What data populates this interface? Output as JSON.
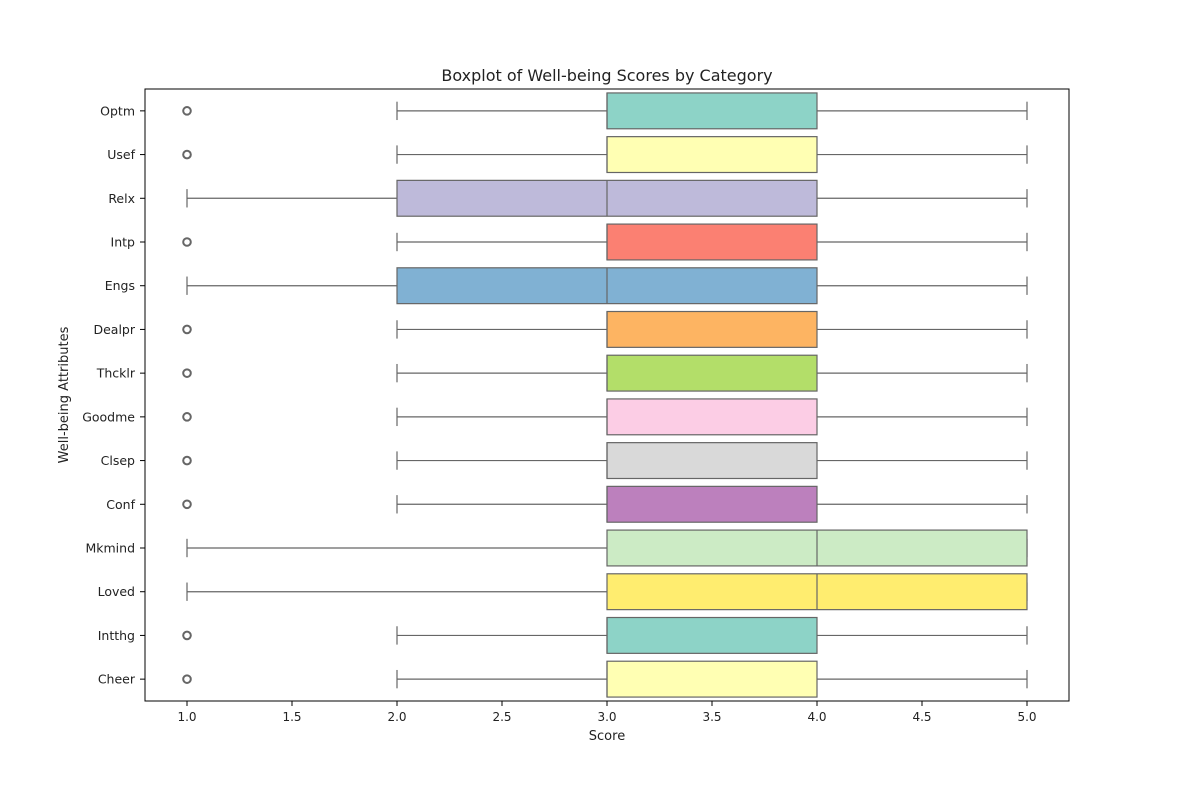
{
  "chart_data": {
    "type": "boxplot",
    "orientation": "horizontal",
    "title": "Boxplot of Well-being Scores by Category",
    "xlabel": "Score",
    "ylabel": "Well-being Attributes",
    "xlim": [
      0.8,
      5.2
    ],
    "xticks": [
      1.0,
      1.5,
      2.0,
      2.5,
      3.0,
      3.5,
      4.0,
      4.5,
      5.0
    ],
    "xtick_labels": [
      "1.0",
      "1.5",
      "2.0",
      "2.5",
      "3.0",
      "3.5",
      "4.0",
      "4.5",
      "5.0"
    ],
    "grid": false,
    "categories": [
      "Optm",
      "Usef",
      "Relx",
      "Intp",
      "Engs",
      "Dealpr",
      "Thcklr",
      "Goodme",
      "Clsep",
      "Conf",
      "Mkmind",
      "Loved",
      "Intthg",
      "Cheer"
    ],
    "boxes": [
      {
        "category": "Optm",
        "whisker_low": 2,
        "q1": 3,
        "median": 3,
        "q3": 4,
        "whisker_high": 5,
        "outliers": [
          1
        ],
        "color": "#8dd3c7"
      },
      {
        "category": "Usef",
        "whisker_low": 2,
        "q1": 3,
        "median": 3,
        "q3": 4,
        "whisker_high": 5,
        "outliers": [
          1
        ],
        "color": "#ffffb3"
      },
      {
        "category": "Relx",
        "whisker_low": 1,
        "q1": 2,
        "median": 3,
        "q3": 4,
        "whisker_high": 5,
        "outliers": [],
        "color": "#bebada"
      },
      {
        "category": "Intp",
        "whisker_low": 2,
        "q1": 3,
        "median": 3,
        "q3": 4,
        "whisker_high": 5,
        "outliers": [
          1
        ],
        "color": "#fb8072"
      },
      {
        "category": "Engs",
        "whisker_low": 1,
        "q1": 2,
        "median": 3,
        "q3": 4,
        "whisker_high": 5,
        "outliers": [],
        "color": "#80b1d3"
      },
      {
        "category": "Dealpr",
        "whisker_low": 2,
        "q1": 3,
        "median": 3,
        "q3": 4,
        "whisker_high": 5,
        "outliers": [
          1
        ],
        "color": "#fdb462"
      },
      {
        "category": "Thcklr",
        "whisker_low": 2,
        "q1": 3,
        "median": 3,
        "q3": 4,
        "whisker_high": 5,
        "outliers": [
          1
        ],
        "color": "#b3de69"
      },
      {
        "category": "Goodme",
        "whisker_low": 2,
        "q1": 3,
        "median": 3,
        "q3": 4,
        "whisker_high": 5,
        "outliers": [
          1
        ],
        "color": "#fccde5"
      },
      {
        "category": "Clsep",
        "whisker_low": 2,
        "q1": 3,
        "median": 3,
        "q3": 4,
        "whisker_high": 5,
        "outliers": [
          1
        ],
        "color": "#d9d9d9"
      },
      {
        "category": "Conf",
        "whisker_low": 2,
        "q1": 3,
        "median": 3,
        "q3": 4,
        "whisker_high": 5,
        "outliers": [
          1
        ],
        "color": "#bc80bd"
      },
      {
        "category": "Mkmind",
        "whisker_low": 1,
        "q1": 3,
        "median": 4,
        "q3": 5,
        "whisker_high": 5,
        "outliers": [],
        "color": "#ccebc5"
      },
      {
        "category": "Loved",
        "whisker_low": 1,
        "q1": 3,
        "median": 4,
        "q3": 5,
        "whisker_high": 5,
        "outliers": [],
        "color": "#ffed6f"
      },
      {
        "category": "Intthg",
        "whisker_low": 2,
        "q1": 3,
        "median": 3,
        "q3": 4,
        "whisker_high": 5,
        "outliers": [
          1
        ],
        "color": "#8dd3c7"
      },
      {
        "category": "Cheer",
        "whisker_low": 2,
        "q1": 3,
        "median": 3,
        "q3": 4,
        "whisker_high": 5,
        "outliers": [
          1
        ],
        "color": "#ffffb3"
      }
    ]
  }
}
